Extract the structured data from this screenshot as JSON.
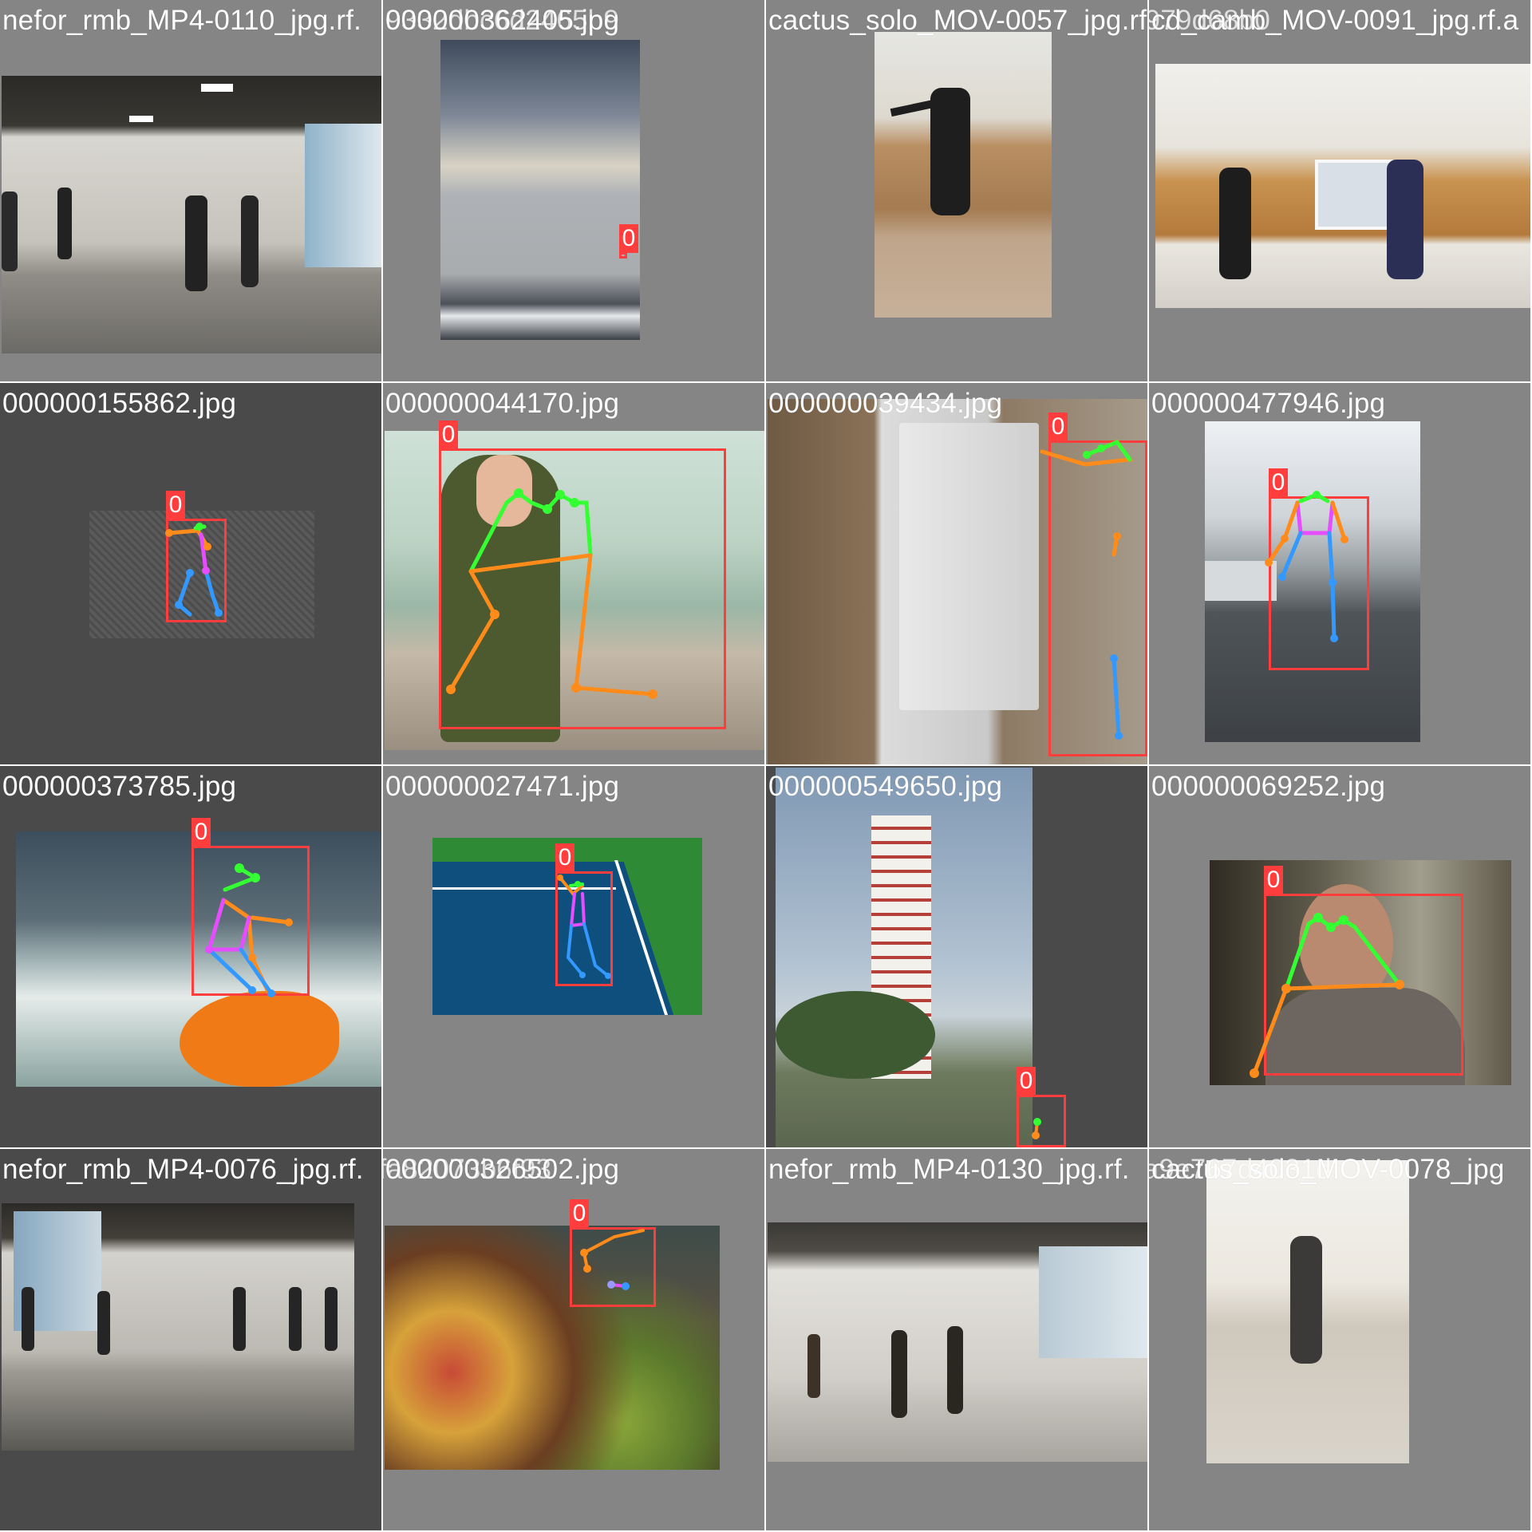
{
  "colors": {
    "box": "#ff3d3d",
    "limb_face": "#33ff33",
    "limb_arm": "#ff8c1a",
    "limb_torso": "#e64dff",
    "limb_leg": "#3399ff",
    "tile_light": "#858585",
    "tile_dark": "#4a4a4a"
  },
  "tiles": [
    {
      "label": "nefor_rmb_MP4-0110_jpg.rf.",
      "overlap_label": "9332dbc6d2465b9",
      "scene": "dance-studio"
    },
    {
      "label": "000000362405.jpg",
      "scene": "sea"
    },
    {
      "label": "cactus_solo_MOV-0057_jpg.rf.",
      "overlap_label": "8979d68b0",
      "scene": "dancer-wall"
    },
    {
      "label": "cd_camb_MOV-0091_jpg.rf.a",
      "scene": "two-dancers"
    },
    {
      "label": "000000155862.jpg",
      "scene": "tennis-gray"
    },
    {
      "label": "000000044170.jpg",
      "scene": "cafe"
    },
    {
      "label": "000000039434.jpg",
      "scene": "fridge"
    },
    {
      "label": "000000477946.jpg",
      "scene": "skater"
    },
    {
      "label": "000000373785.jpg",
      "scene": "surfer"
    },
    {
      "label": "000000027471.jpg",
      "scene": "tennis-court"
    },
    {
      "label": "000000549650.jpg",
      "scene": "clock-tower"
    },
    {
      "label": "000000069252.jpg",
      "scene": "man-portrait"
    },
    {
      "label": "nefor_rmb_MP4-0076_jpg.rf.",
      "overlap_label": "7fa82073b6f93",
      "scene": "dance-studio-2"
    },
    {
      "label": "000000326502.jpg",
      "scene": "fruit-market"
    },
    {
      "label": "nefor_rmb_MP4-0130_jpg.rf.",
      "overlap_label": "ca9e767d4031d",
      "scene": "dance-studio-3"
    },
    {
      "label": "cactus_solo_MOV-0078_jpg",
      "scene": "sepia-dancer"
    }
  ],
  "detection_tag": "0"
}
